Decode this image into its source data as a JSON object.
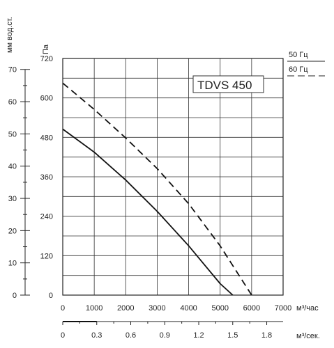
{
  "chart_data": {
    "type": "line",
    "title": "TDVS 450",
    "x_axis": {
      "label": "м³/час",
      "range": [
        0,
        7000
      ],
      "ticks": [
        "0",
        "1000",
        "2000",
        "3000",
        "4000",
        "5000",
        "6000",
        "7000"
      ]
    },
    "x2_axis": {
      "label": "м³/сек.",
      "range": [
        0,
        1.9444
      ],
      "ticks": [
        "0",
        "0.3",
        "0.6",
        "0.9",
        "1.2",
        "1.5",
        "1.8"
      ]
    },
    "y_axis": {
      "label": "Па",
      "range": [
        0,
        720
      ],
      "ticks": [
        "0",
        "120",
        "240",
        "360",
        "480",
        "600",
        "720"
      ]
    },
    "y2_axis": {
      "label": "мм вод.ст.",
      "range": [
        0,
        73.4
      ],
      "ticks": [
        "0",
        "10",
        "20",
        "30",
        "40",
        "50",
        "60",
        "70"
      ]
    },
    "grid": true,
    "legend_position": "top-right",
    "series": [
      {
        "name": "50 Гц",
        "style": "solid",
        "x": [
          0,
          1000,
          2000,
          3000,
          4000,
          5000,
          5400
        ],
        "y": [
          505,
          435,
          350,
          255,
          150,
          35,
          0
        ]
      },
      {
        "name": "60 Гц",
        "style": "dashed",
        "x": [
          0,
          1000,
          2000,
          3000,
          4000,
          5000,
          6000
        ],
        "y": [
          645,
          565,
          478,
          385,
          278,
          150,
          0
        ]
      }
    ]
  }
}
